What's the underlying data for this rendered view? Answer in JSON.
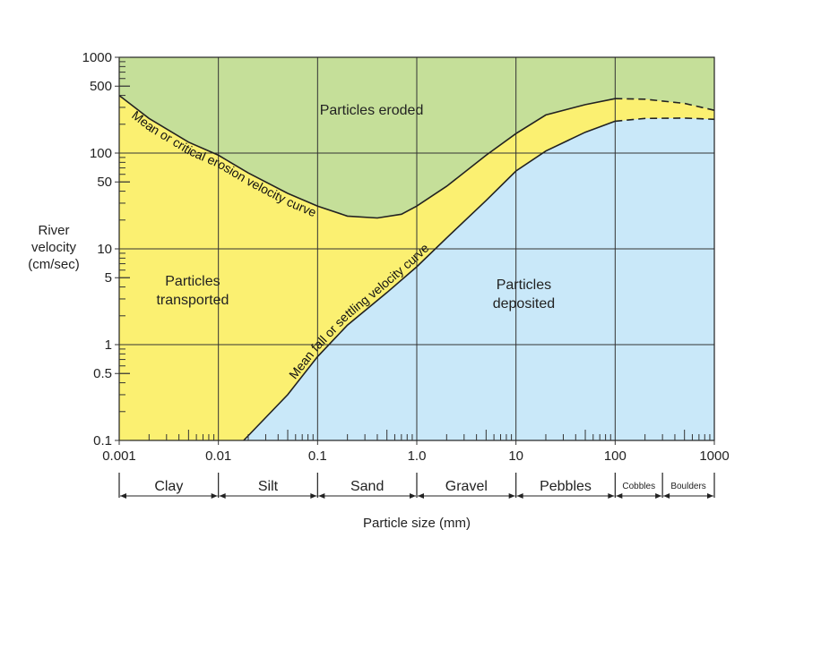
{
  "chart_data": {
    "type": "area",
    "title": "",
    "xlabel": "Particle size (mm)",
    "ylabel_lines": [
      "River",
      "velocity",
      "(cm/sec)"
    ],
    "x_scale": "log",
    "y_scale": "log",
    "xlim": [
      0.001,
      1000
    ],
    "ylim": [
      0.1,
      1000
    ],
    "grid": true,
    "x_ticks": [
      {
        "value": 0.001,
        "label": "0.001"
      },
      {
        "value": 0.01,
        "label": "0.01"
      },
      {
        "value": 0.1,
        "label": "0.1"
      },
      {
        "value": 1,
        "label": "1.0"
      },
      {
        "value": 10,
        "label": "10"
      },
      {
        "value": 100,
        "label": "100"
      },
      {
        "value": 1000,
        "label": "1000"
      }
    ],
    "y_ticks": [
      {
        "value": 0.1,
        "label": "0.1"
      },
      {
        "value": 0.5,
        "label": "0.5"
      },
      {
        "value": 1,
        "label": "1"
      },
      {
        "value": 5,
        "label": "5"
      },
      {
        "value": 10,
        "label": "10"
      },
      {
        "value": 50,
        "label": "50"
      },
      {
        "value": 100,
        "label": "100"
      },
      {
        "value": 500,
        "label": "500"
      },
      {
        "value": 1000,
        "label": "1000"
      }
    ],
    "series": [
      {
        "name": "Mean or critical erosion velocity curve",
        "points": [
          [
            0.001,
            400
          ],
          [
            0.002,
            230
          ],
          [
            0.005,
            130
          ],
          [
            0.01,
            95
          ],
          [
            0.02,
            62
          ],
          [
            0.05,
            38
          ],
          [
            0.1,
            28
          ],
          [
            0.2,
            22
          ],
          [
            0.4,
            21
          ],
          [
            0.7,
            23
          ],
          [
            1,
            28
          ],
          [
            2,
            45
          ],
          [
            5,
            95
          ],
          [
            10,
            160
          ],
          [
            20,
            250
          ],
          [
            50,
            320
          ],
          [
            100,
            370
          ]
        ],
        "dashed_points": [
          [
            100,
            370
          ],
          [
            200,
            365
          ],
          [
            500,
            330
          ],
          [
            1000,
            280
          ]
        ]
      },
      {
        "name": "Mean fall or settling velocity curve",
        "points": [
          [
            0.018,
            0.1
          ],
          [
            0.05,
            0.3
          ],
          [
            0.1,
            0.75
          ],
          [
            0.2,
            1.6
          ],
          [
            0.5,
            3.5
          ],
          [
            1,
            6.5
          ],
          [
            2,
            13
          ],
          [
            5,
            32
          ],
          [
            10,
            65
          ],
          [
            20,
            105
          ],
          [
            50,
            165
          ],
          [
            100,
            215
          ]
        ],
        "dashed_points": [
          [
            100,
            215
          ],
          [
            200,
            230
          ],
          [
            500,
            232
          ],
          [
            1000,
            225
          ]
        ]
      }
    ],
    "regions": [
      {
        "label": "Particles eroded",
        "color": "#c5df99",
        "label_at": [
          0.35,
          280
        ]
      },
      {
        "label_lines": [
          "Particles",
          "transported"
        ],
        "color": "#fbf071",
        "label_at": [
          0.0055,
          3.8
        ]
      },
      {
        "label_lines": [
          "Particles",
          "deposited"
        ],
        "color": "#c9e8f9",
        "label_at": [
          12,
          3.5
        ]
      }
    ],
    "size_classes": [
      {
        "label": "Clay",
        "from": 0.001,
        "to": 0.01
      },
      {
        "label": "Silt",
        "from": 0.01,
        "to": 0.1
      },
      {
        "label": "Sand",
        "from": 0.1,
        "to": 1
      },
      {
        "label": "Gravel",
        "from": 1,
        "to": 10
      },
      {
        "label": "Pebbles",
        "from": 10,
        "to": 100
      },
      {
        "label": "Cobbles",
        "from": 100,
        "to": 300,
        "small": true
      },
      {
        "label": "Boulders",
        "from": 300,
        "to": 1000,
        "small": true
      }
    ]
  }
}
